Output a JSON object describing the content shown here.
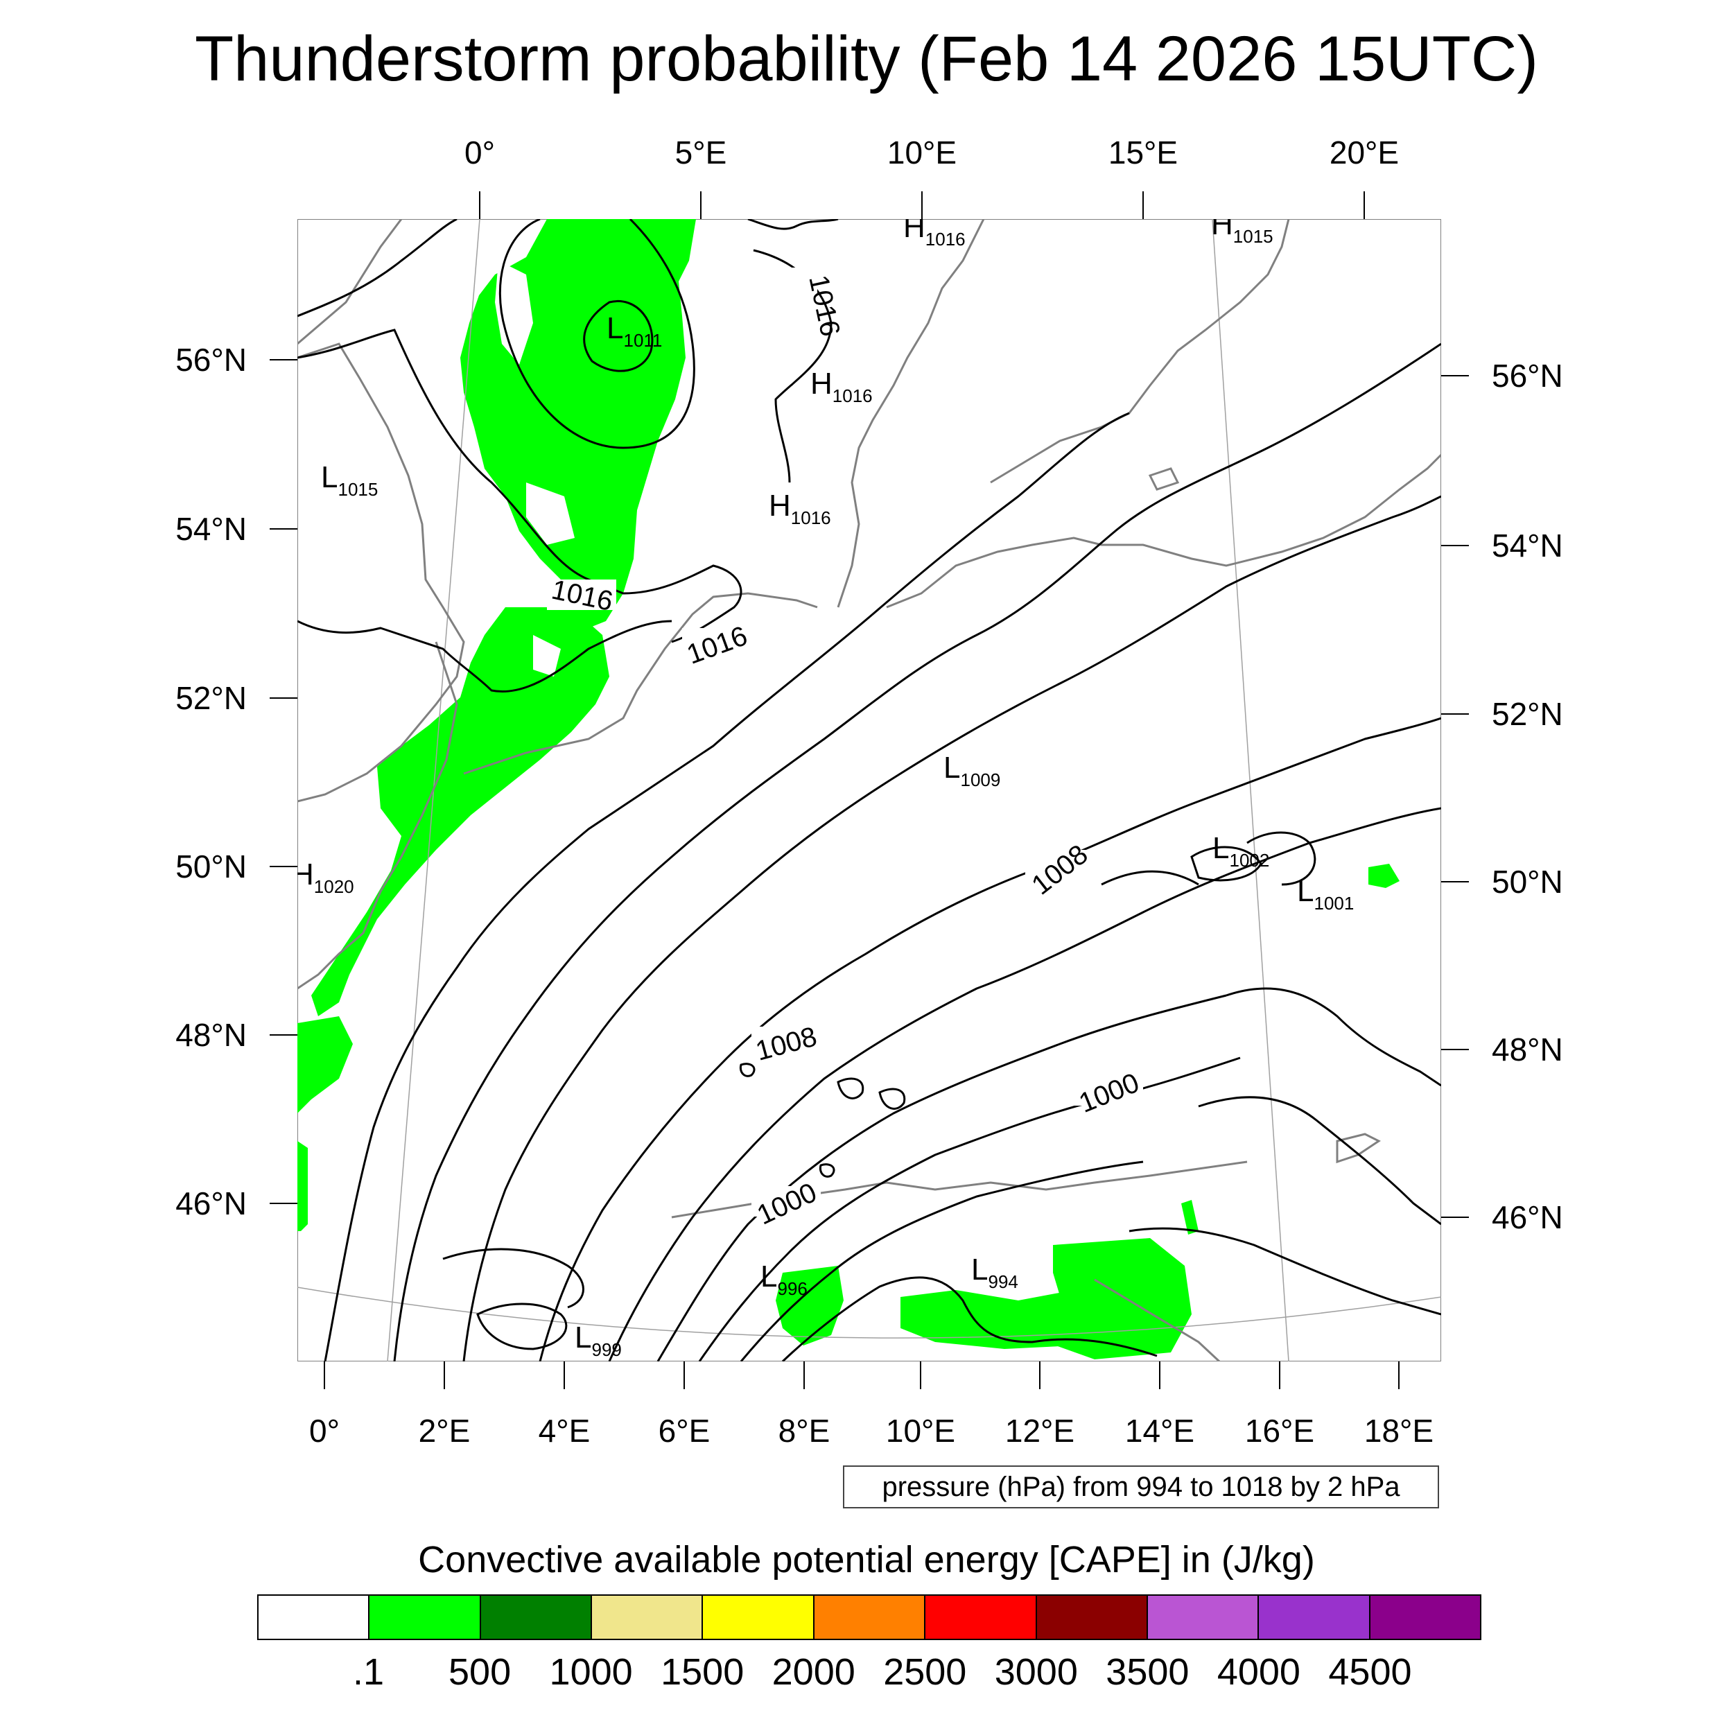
{
  "title": "Thunderstorm probability (Feb 14 2026 15UTC)",
  "map": {
    "projection": "Lambert conformal",
    "lon_range": [
      -0.5,
      18.8
    ],
    "lat_range": [
      44.2,
      57.7
    ],
    "axes": {
      "top_lon_labels": [
        "0°",
        "5°E",
        "10°E",
        "15°E",
        "20°E"
      ],
      "bottom_lon_labels": [
        "0°",
        "2°E",
        "4°E",
        "6°E",
        "8°E",
        "10°E",
        "12°E",
        "14°E",
        "16°E",
        "18°E"
      ],
      "left_lat_labels": [
        "56°N",
        "54°N",
        "52°N",
        "50°N",
        "48°N",
        "46°N"
      ],
      "right_lat_labels": [
        "56°N",
        "54°N",
        "52°N",
        "50°N",
        "48°N",
        "46°N"
      ]
    },
    "contour_labels": [
      "1016",
      "1016",
      "1016",
      "1008",
      "1008",
      "1000",
      "1000"
    ],
    "pressure_centers": [
      {
        "type": "L",
        "value": "1011"
      },
      {
        "type": "H",
        "value": "1016"
      },
      {
        "type": "H",
        "value": "1015"
      },
      {
        "type": "H",
        "value": "1016"
      },
      {
        "type": "H",
        "value": "1016"
      },
      {
        "type": "L",
        "value": "1015"
      },
      {
        "type": "L",
        "value": "1009"
      },
      {
        "type": "L",
        "value": "1002"
      },
      {
        "type": "L",
        "value": "1001"
      },
      {
        "type": "H",
        "value": "1020"
      },
      {
        "type": "L",
        "value": "996"
      },
      {
        "type": "L",
        "value": "994"
      },
      {
        "type": "L",
        "value": "999"
      }
    ],
    "cape_color": "#00ff00",
    "contour_color": "#000000",
    "coast_color": "#808080"
  },
  "contour_info": "pressure (hPa) from 994 to 1018 by 2 hPa",
  "colorbar": {
    "title": "Convective available potential energy [CAPE] in (J/kg)",
    "colors": [
      "#ffffff",
      "#00ff00",
      "#008000",
      "#f0e68c",
      "#ffff00",
      "#ff8000",
      "#ff0000",
      "#8b0000",
      "#ba55d3",
      "#9932cc",
      "#8b008b"
    ],
    "labels": [
      ".1",
      "500",
      "1000",
      "1500",
      "2000",
      "2500",
      "3000",
      "3500",
      "4000",
      "4500"
    ]
  }
}
